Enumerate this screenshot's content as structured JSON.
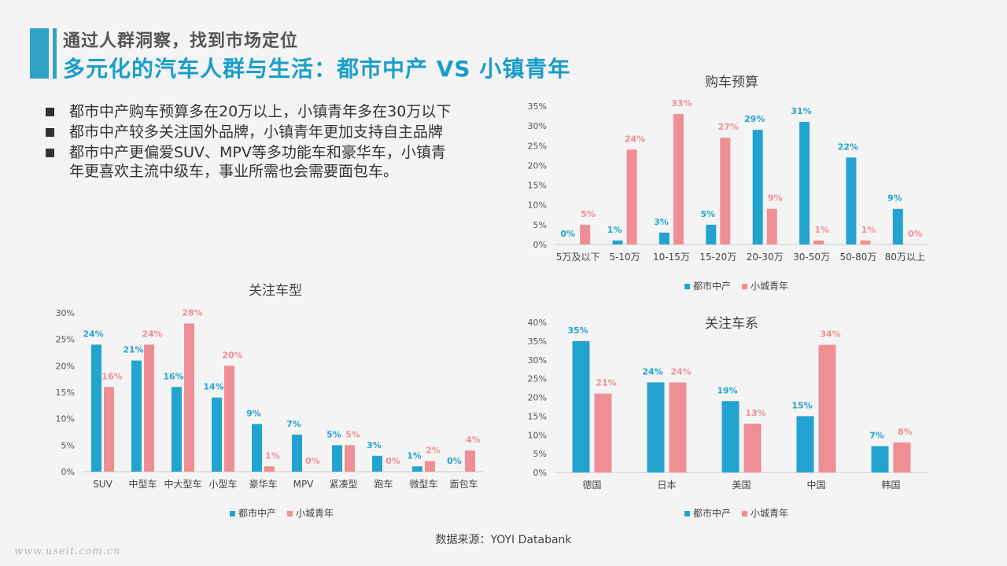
{
  "header": {
    "subtitle": "通过人群洞察，找到市场定位",
    "title": "多元化的汽车人群与生活：都市中产 VS 小镇青年"
  },
  "bullets": [
    "都市中产购车预算多在20万以上，小镇青年多在30万以下",
    "都市中产较多关注国外品牌，小镇青年更加支持自主品牌",
    "都市中产更偏爱SUV、MPV等多功能车和豪华车，小镇青年更喜欢主流中级车，事业所需也会需要面包车。"
  ],
  "colors": {
    "series1": "#23a3d0",
    "series2": "#ef8f95"
  },
  "chart_data": [
    {
      "id": "budget",
      "type": "bar",
      "title": "购车预算",
      "categories": [
        "5万及以下",
        "5-10万",
        "10-15万",
        "15-20万",
        "20-30万",
        "30-50万",
        "50-80万",
        "80万以上"
      ],
      "series": [
        {
          "name": "都市中产",
          "values": [
            0,
            1,
            3,
            5,
            29,
            31,
            22,
            9
          ]
        },
        {
          "name": "小城青年",
          "values": [
            5,
            24,
            33,
            27,
            9,
            1,
            1,
            0
          ]
        }
      ],
      "yticks": [
        "0%",
        "5%",
        "10%",
        "15%",
        "20%",
        "25%",
        "30%",
        "35%"
      ],
      "ylim": [
        0,
        35
      ],
      "legend": "bottom"
    },
    {
      "id": "type",
      "type": "bar",
      "title": "关注车型",
      "categories": [
        "SUV",
        "中型车",
        "中大型车",
        "小型车",
        "豪华车",
        "MPV",
        "紧凑型",
        "跑车",
        "微型车",
        "面包车"
      ],
      "series": [
        {
          "name": "都市中产",
          "values": [
            24,
            21,
            16,
            14,
            9,
            7,
            5,
            3,
            1,
            0
          ]
        },
        {
          "name": "小城青年",
          "values": [
            16,
            24,
            28,
            20,
            1,
            0,
            5,
            0,
            2,
            4
          ]
        }
      ],
      "yticks": [
        "0%",
        "5%",
        "10%",
        "15%",
        "20%",
        "25%",
        "30%"
      ],
      "ylim": [
        0,
        30
      ],
      "legend": "bottom"
    },
    {
      "id": "brand",
      "type": "bar",
      "title": "关注车系",
      "categories": [
        "德国",
        "日本",
        "美国",
        "中国",
        "韩国"
      ],
      "series": [
        {
          "name": "都市中产",
          "values": [
            35,
            24,
            19,
            15,
            7
          ]
        },
        {
          "name": "小城青年",
          "values": [
            21,
            24,
            13,
            34,
            8
          ]
        }
      ],
      "yticks": [
        "0%",
        "5%",
        "10%",
        "15%",
        "20%",
        "25%",
        "30%",
        "35%",
        "40%"
      ],
      "ylim": [
        0,
        40
      ],
      "legend": "bottom"
    }
  ],
  "source": "数据来源：YOYI  Databank",
  "watermark": "www.useit.com.cn"
}
